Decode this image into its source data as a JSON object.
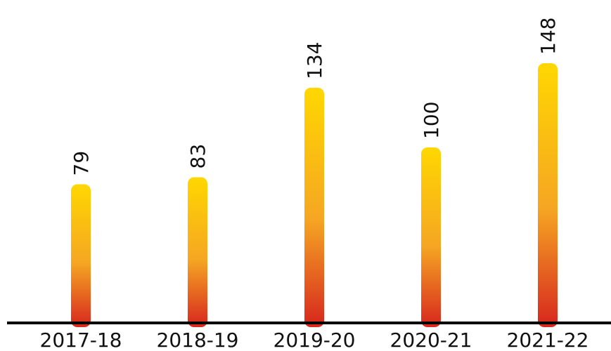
{
  "chart_data": {
    "type": "bar",
    "categories": [
      "2017-18",
      "2018-19",
      "2019-20",
      "2020-21",
      "2021-22"
    ],
    "values": [
      79,
      83,
      134,
      100,
      148
    ],
    "data_labels": [
      "79",
      "83",
      "134",
      "100",
      "148"
    ],
    "title": "",
    "xlabel": "",
    "ylabel": "",
    "ylim": [
      0,
      160
    ],
    "grid": false,
    "value_label_orientation": "vertical",
    "colors": {
      "bar_top": "#FFD700",
      "bar_mid": "#F5A623",
      "bar_bottom": "#D7261E",
      "axis": "#000000",
      "text": "#111111"
    }
  }
}
